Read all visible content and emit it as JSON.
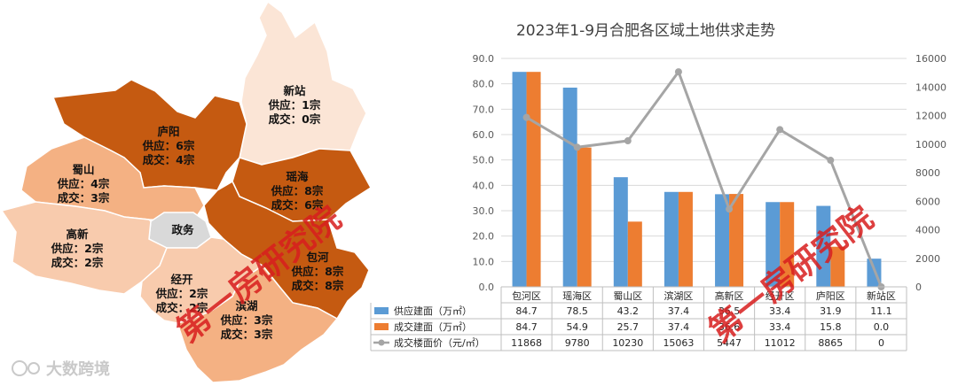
{
  "map": {
    "districts": [
      {
        "id": "xinzhan",
        "name": "新站",
        "supply": "供应：1宗",
        "deal": "成交：0宗",
        "color": "#fbe5d6"
      },
      {
        "id": "luyang",
        "name": "庐阳",
        "supply": "供应：6宗",
        "deal": "成交：4宗",
        "color": "#c55a11"
      },
      {
        "id": "yaohai",
        "name": "瑶海",
        "supply": "供应：8宗",
        "deal": "成交：6宗",
        "color": "#c55a11"
      },
      {
        "id": "shushan",
        "name": "蜀山",
        "supply": "供应：4宗",
        "deal": "成交：3宗",
        "color": "#f4b183"
      },
      {
        "id": "zhengwu",
        "name": "政务",
        "supply": "",
        "deal": "",
        "color": "#d9d9d9"
      },
      {
        "id": "gaoxin",
        "name": "高新",
        "supply": "供应：2宗",
        "deal": "成交：2宗",
        "color": "#f8cbad"
      },
      {
        "id": "baohe",
        "name": "包河",
        "supply": "供应：8宗",
        "deal": "成交：8宗",
        "color": "#c55a11"
      },
      {
        "id": "jingkai",
        "name": "经开",
        "supply": "供应：2宗",
        "deal": "成交：2宗",
        "color": "#f8cbad"
      },
      {
        "id": "binhu",
        "name": "滨湖",
        "supply": "供应：3宗",
        "deal": "成交：3宗",
        "color": "#f4b183"
      }
    ]
  },
  "watermarks": {
    "text": "第一房研究院"
  },
  "logo": {
    "text": "大数跨境"
  },
  "chart_data": {
    "type": "bar",
    "title": "2023年1-9月合肥各区域土地供求走势",
    "categories": [
      "包河区",
      "瑶海区",
      "蜀山区",
      "滨湖区",
      "高新区",
      "经开区",
      "庐阳区",
      "新站区"
    ],
    "series": [
      {
        "name": "供应建面（万㎡）",
        "type": "bar",
        "color": "#5b9bd5",
        "values": [
          84.7,
          78.5,
          43.2,
          37.4,
          36.5,
          33.4,
          31.9,
          11.1
        ],
        "labels": [
          "84.7",
          "78.5",
          "43.2",
          "37.4",
          "36.5",
          "33.4",
          "31.9",
          "11.1"
        ]
      },
      {
        "name": "成交建面（万㎡）",
        "type": "bar",
        "color": "#ed7d31",
        "values": [
          84.7,
          54.9,
          25.7,
          37.4,
          36.6,
          33.4,
          15.8,
          0.0
        ],
        "labels": [
          "84.7",
          "54.9",
          "25.7",
          "37.4",
          "36.6",
          "33.4",
          "15.8",
          "0.0"
        ]
      },
      {
        "name": "成交楼面价（元/㎡）",
        "type": "line",
        "axis": "right",
        "color": "#a5a5a5",
        "values": [
          11868,
          9780,
          10230,
          15063,
          5447,
          11012,
          8865,
          0
        ],
        "labels": [
          "11868",
          "9780",
          "10230",
          "15063",
          "5447",
          "11012",
          "8865",
          "0"
        ]
      }
    ],
    "y_left": {
      "min": 0,
      "max": 90,
      "step": 10,
      "ticks": [
        "0.0",
        "10.0",
        "20.0",
        "30.0",
        "40.0",
        "50.0",
        "60.0",
        "70.0",
        "80.0",
        "90.0"
      ]
    },
    "y_right": {
      "min": 0,
      "max": 16000,
      "step": 2000,
      "ticks": [
        "0",
        "2000",
        "4000",
        "6000",
        "8000",
        "10000",
        "12000",
        "14000",
        "16000"
      ]
    },
    "grid": true,
    "legend": "bottom-left data table"
  }
}
